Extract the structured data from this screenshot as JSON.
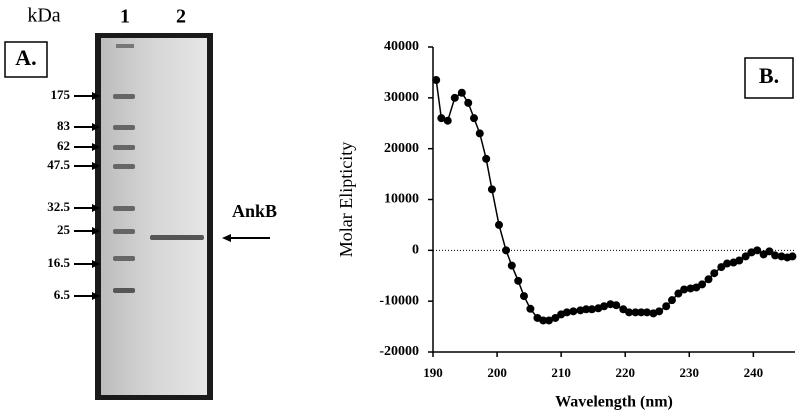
{
  "panel_a": {
    "label": "A.",
    "unit": "kDa",
    "lanes": [
      "1",
      "2"
    ],
    "markers": [
      "175",
      "83",
      "62",
      "47.5",
      "32.5",
      "25",
      "16.5",
      "6.5"
    ],
    "band_label": "AnkB"
  },
  "chart_data": {
    "type": "line",
    "panel_label": "B.",
    "x_label": "Wavelength (nm)",
    "y_label": "Molar Elipticity",
    "xlim": [
      190,
      246.5
    ],
    "ylim": [
      -20000,
      40000
    ],
    "xticks": [
      190,
      200,
      210,
      220,
      230,
      240
    ],
    "yticks": [
      -20000,
      -10000,
      0,
      10000,
      20000,
      30000,
      40000
    ],
    "zero_line": true,
    "color": "#000000",
    "x": [
      190.5,
      191.3,
      192.3,
      193.4,
      194.5,
      195.5,
      196.4,
      197.3,
      198.3,
      199.2,
      200.3,
      201.4,
      202.3,
      203.3,
      204.2,
      205.2,
      206.3,
      207.2,
      208.1,
      209.1,
      210.0,
      210.9,
      211.9,
      213.0,
      213.9,
      214.8,
      215.8,
      216.7,
      217.7,
      218.6,
      219.7,
      220.6,
      221.6,
      222.5,
      223.4,
      224.4,
      225.3,
      226.4,
      227.3,
      228.3,
      229.2,
      230.2,
      231.1,
      232.0,
      233.0,
      233.9,
      235.0,
      235.9,
      236.9,
      237.8,
      238.8,
      239.7,
      240.6,
      241.6,
      242.5,
      243.4,
      244.4,
      245.3,
      246.1
    ],
    "values": [
      33500,
      26000,
      25500,
      30000,
      31000,
      29000,
      26000,
      23000,
      18000,
      12000,
      5000,
      0,
      -3000,
      -6000,
      -9000,
      -11500,
      -13300,
      -13800,
      -13800,
      -13300,
      -12600,
      -12200,
      -12000,
      -11800,
      -11600,
      -11600,
      -11400,
      -11000,
      -10600,
      -10800,
      -11600,
      -12200,
      -12200,
      -12200,
      -12200,
      -12400,
      -12000,
      -11000,
      -9800,
      -8500,
      -7700,
      -7500,
      -7300,
      -6700,
      -5700,
      -4500,
      -3300,
      -2600,
      -2400,
      -2000,
      -1200,
      -400,
      0,
      -800,
      -200,
      -1000,
      -1200,
      -1400,
      -1200
    ]
  }
}
